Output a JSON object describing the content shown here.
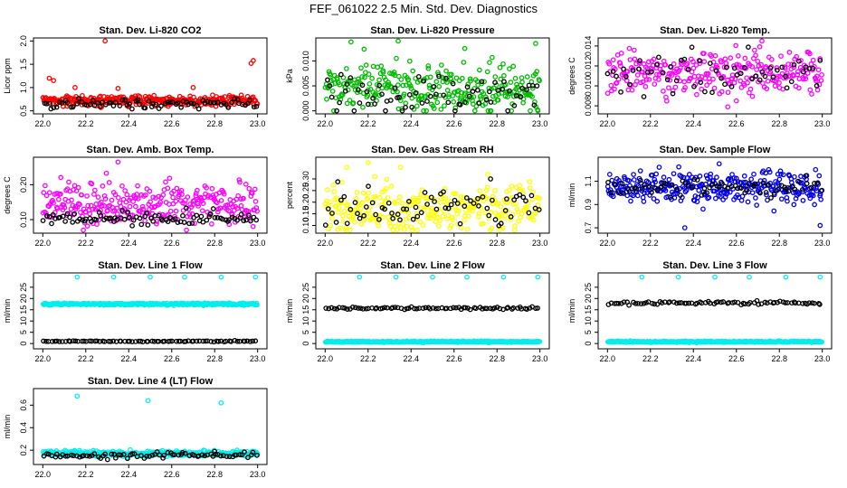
{
  "figure": {
    "title": "FEF_061022  2.5 Min. Std. Dev. Diagnostics"
  },
  "chart_data": [
    {
      "type": "scatter",
      "title": "Stan. Dev. Li-820 CO2",
      "ylabel": "Licor ppm",
      "xlim": [
        22.0,
        23.0
      ],
      "ylim": [
        0.5,
        2.0
      ],
      "xticks": [
        "22.0",
        "22.2",
        "22.4",
        "22.6",
        "22.8",
        "23.0"
      ],
      "yticks": [
        "0.5",
        "1.0",
        "1.5",
        "2.0"
      ],
      "series": [
        {
          "name": "primary",
          "color": "#ff0000",
          "n": 300,
          "mean": 0.72,
          "sd": 0.06,
          "outliers": [
            {
              "x": 22.03,
              "y": 1.2
            },
            {
              "x": 22.05,
              "y": 1.15
            },
            {
              "x": 22.29,
              "y": 2.0
            },
            {
              "x": 22.98,
              "y": 1.58
            },
            {
              "x": 22.97,
              "y": 1.52
            },
            {
              "x": 22.15,
              "y": 1.0
            },
            {
              "x": 22.35,
              "y": 0.98
            },
            {
              "x": 22.7,
              "y": 1.0
            }
          ]
        },
        {
          "name": "secondary",
          "color": "#000000",
          "n": 80,
          "mean": 0.65,
          "sd": 0.05,
          "outliers": []
        }
      ]
    },
    {
      "type": "scatter",
      "title": "Stan. Dev. Li-820 Pressure",
      "ylabel": "kPa",
      "xlim": [
        22.0,
        23.0
      ],
      "ylim": [
        0.0,
        0.014
      ],
      "xticks": [
        "22.0",
        "22.2",
        "22.4",
        "22.6",
        "22.8",
        "23.0"
      ],
      "yticks": [
        "0.000",
        "0.005",
        "0.010"
      ],
      "series": [
        {
          "name": "primary",
          "color": "#00bb00",
          "n": 300,
          "mean": 0.0045,
          "sd": 0.0025,
          "outliers": [
            {
              "x": 22.34,
              "y": 0.014
            },
            {
              "x": 22.65,
              "y": 0.0125
            },
            {
              "x": 22.98,
              "y": 0.0135
            },
            {
              "x": 22.48,
              "y": 0.009
            }
          ]
        },
        {
          "name": "secondary",
          "color": "#000000",
          "n": 70,
          "mean": 0.0025,
          "sd": 0.002,
          "outliers": []
        }
      ]
    },
    {
      "type": "scatter",
      "title": "Stan. Dev. Li-820 Temp.",
      "ylabel": "degrees C",
      "xlim": [
        22.0,
        23.0
      ],
      "ylim": [
        0.0075,
        0.0145
      ],
      "xticks": [
        "22.0",
        "22.2",
        "22.4",
        "22.6",
        "22.8",
        "23.0"
      ],
      "yticks": [
        "0.008",
        "0.010",
        "0.012",
        "0.014"
      ],
      "series": [
        {
          "name": "primary",
          "color": "#ff00ff",
          "n": 280,
          "mean": 0.0113,
          "sd": 0.0011,
          "outliers": [
            {
              "x": 22.56,
              "y": 0.0079
            },
            {
              "x": 22.6,
              "y": 0.0085
            }
          ]
        },
        {
          "name": "secondary",
          "color": "#000000",
          "n": 60,
          "mean": 0.0112,
          "sd": 0.001,
          "outliers": []
        }
      ]
    },
    {
      "type": "scatter",
      "title": "Stan. Dev. Amb. Box Temp.",
      "ylabel": "degrees C",
      "xlim": [
        22.0,
        23.0
      ],
      "ylim": [
        0.07,
        0.27
      ],
      "xticks": [
        "22.0",
        "22.2",
        "22.4",
        "22.6",
        "22.8",
        "23.0"
      ],
      "yticks": [
        "0.10",
        "0.20"
      ],
      "series": [
        {
          "name": "primary",
          "color": "#ff00ff",
          "n": 300,
          "mean": 0.145,
          "sd": 0.03,
          "outliers": [
            {
              "x": 22.35,
              "y": 0.265
            }
          ]
        },
        {
          "name": "secondary",
          "color": "#000000",
          "n": 90,
          "mean": 0.105,
          "sd": 0.01,
          "outliers": []
        }
      ]
    },
    {
      "type": "scatter",
      "title": "Stan. Dev. Gas Stream RH",
      "ylabel": "percent",
      "xlim": [
        22.0,
        23.0
      ],
      "ylim": [
        0.08,
        0.38
      ],
      "xticks": [
        "22.0",
        "22.2",
        "22.4",
        "22.6",
        "22.8",
        "23.0"
      ],
      "yticks": [
        "0.10",
        "0.15",
        "0.20",
        "0.25",
        "0.30"
      ],
      "series": [
        {
          "name": "primary",
          "color": "#ffff00",
          "n": 300,
          "mean": 0.17,
          "sd": 0.05,
          "outliers": [
            {
              "x": 22.1,
              "y": 0.35
            },
            {
              "x": 22.2,
              "y": 0.37
            },
            {
              "x": 22.35,
              "y": 0.35
            }
          ]
        },
        {
          "name": "secondary",
          "color": "#000000",
          "n": 70,
          "mean": 0.17,
          "sd": 0.04,
          "outliers": [
            {
              "x": 22.77,
              "y": 0.3
            }
          ]
        }
      ]
    },
    {
      "type": "scatter",
      "title": "Stan. Dev. Sample Flow",
      "ylabel": "ml/min",
      "xlim": [
        22.0,
        23.0
      ],
      "ylim": [
        0.68,
        1.28
      ],
      "xticks": [
        "22.0",
        "22.2",
        "22.4",
        "22.6",
        "22.8",
        "23.0"
      ],
      "yticks": [
        "0.7",
        "0.9",
        "1.1"
      ],
      "series": [
        {
          "name": "primary",
          "color": "#0000ee",
          "n": 300,
          "mean": 1.04,
          "sd": 0.07,
          "outliers": [
            {
              "x": 22.99,
              "y": 0.72
            },
            {
              "x": 22.36,
              "y": 0.7
            },
            {
              "x": 22.52,
              "y": 1.25
            }
          ]
        },
        {
          "name": "secondary",
          "color": "#000000",
          "n": 70,
          "mean": 1.05,
          "sd": 0.04,
          "outliers": []
        }
      ]
    },
    {
      "type": "scatter",
      "title": "Stan. Dev. Line 1 Flow",
      "ylabel": "ml/min",
      "xlim": [
        22.0,
        23.0
      ],
      "ylim": [
        -1,
        30
      ],
      "xticks": [
        "22.0",
        "22.2",
        "22.4",
        "22.6",
        "22.8",
        "23.0"
      ],
      "yticks": [
        "0",
        "5",
        "10",
        "15",
        "20",
        "25"
      ],
      "series": [
        {
          "name": "primary",
          "color": "#00eeee",
          "n": 300,
          "mean": 17.5,
          "sd": 0.25,
          "outliers": [
            {
              "x": 22.16,
              "y": 29.5
            },
            {
              "x": 22.33,
              "y": 29.5
            },
            {
              "x": 22.5,
              "y": 29.5
            },
            {
              "x": 22.66,
              "y": 29.5
            },
            {
              "x": 22.83,
              "y": 29.5
            },
            {
              "x": 22.99,
              "y": 29.5
            }
          ]
        },
        {
          "name": "secondary",
          "color": "#000000",
          "n": 80,
          "mean": 1.0,
          "sd": 0.1,
          "outliers": []
        }
      ]
    },
    {
      "type": "scatter",
      "title": "Stan. Dev. Line 2 Flow",
      "ylabel": "ml/min",
      "xlim": [
        22.0,
        23.0
      ],
      "ylim": [
        -1,
        30
      ],
      "xticks": [
        "22.0",
        "22.2",
        "22.4",
        "22.6",
        "22.8",
        "23.0"
      ],
      "yticks": [
        "0",
        "5",
        "10",
        "15",
        "20",
        "25"
      ],
      "series": [
        {
          "name": "primary",
          "color": "#00eeee",
          "n": 300,
          "mean": 0.8,
          "sd": 0.15,
          "outliers": [
            {
              "x": 22.16,
              "y": 29.5
            },
            {
              "x": 22.33,
              "y": 29.5
            },
            {
              "x": 22.5,
              "y": 29.5
            },
            {
              "x": 22.66,
              "y": 29.5
            },
            {
              "x": 22.83,
              "y": 29.5
            },
            {
              "x": 22.99,
              "y": 29.5
            }
          ]
        },
        {
          "name": "secondary",
          "color": "#000000",
          "n": 80,
          "mean": 15.7,
          "sd": 0.3,
          "outliers": []
        }
      ]
    },
    {
      "type": "scatter",
      "title": "Stan. Dev. Line 3 Flow",
      "ylabel": "ml/min",
      "xlim": [
        22.0,
        23.0
      ],
      "ylim": [
        -1,
        30
      ],
      "xticks": [
        "22.0",
        "22.2",
        "22.4",
        "22.6",
        "22.8",
        "23.0"
      ],
      "yticks": [
        "0",
        "5",
        "10",
        "15",
        "20",
        "25"
      ],
      "series": [
        {
          "name": "primary",
          "color": "#00eeee",
          "n": 300,
          "mean": 0.8,
          "sd": 0.15,
          "outliers": [
            {
              "x": 22.16,
              "y": 29.5
            },
            {
              "x": 22.33,
              "y": 29.5
            },
            {
              "x": 22.5,
              "y": 29.5
            },
            {
              "x": 22.66,
              "y": 29.5
            },
            {
              "x": 22.83,
              "y": 29.5
            },
            {
              "x": 22.99,
              "y": 29.5
            }
          ]
        },
        {
          "name": "secondary",
          "color": "#000000",
          "n": 80,
          "mean": 18.0,
          "sd": 0.35,
          "outliers": []
        }
      ]
    },
    {
      "type": "scatter",
      "title": "Stan. Dev. Line 4 (LT) Flow",
      "ylabel": "ml/min",
      "xlim": [
        22.0,
        23.0
      ],
      "ylim": [
        0.1,
        0.72
      ],
      "xticks": [
        "22.0",
        "22.2",
        "22.4",
        "22.6",
        "22.8",
        "23.0"
      ],
      "yticks": [
        "0.2",
        "0.4",
        "0.6"
      ],
      "series": [
        {
          "name": "primary",
          "color": "#00eeee",
          "n": 300,
          "mean": 0.17,
          "sd": 0.012,
          "outliers": [
            {
              "x": 22.16,
              "y": 0.68
            },
            {
              "x": 22.49,
              "y": 0.64
            },
            {
              "x": 22.83,
              "y": 0.62
            }
          ]
        },
        {
          "name": "secondary",
          "color": "#000000",
          "n": 80,
          "mean": 0.155,
          "sd": 0.012,
          "outliers": [
            {
              "x": 22.8,
              "y": 0.19
            }
          ]
        }
      ]
    }
  ]
}
